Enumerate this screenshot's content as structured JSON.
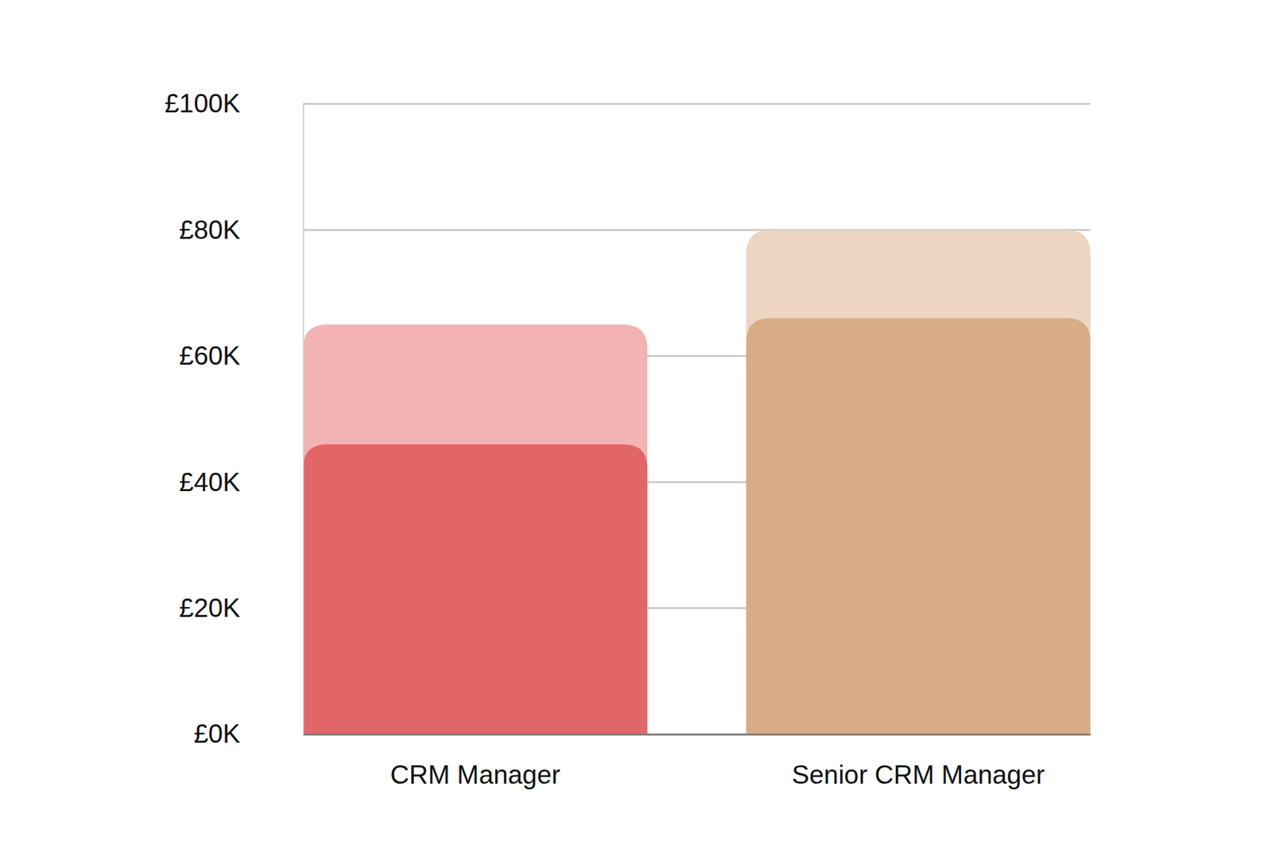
{
  "chart_data": {
    "type": "bar",
    "categories": [
      "CRM Manager",
      "Senior CRM Manager"
    ],
    "series": [
      {
        "colors": [
          "#f2b3b3",
          "#ecd5c2"
        ],
        "values": [
          65000,
          80000
        ]
      },
      {
        "colors": [
          "#e26567",
          "#d8ac85"
        ],
        "values": [
          46000,
          66000
        ]
      }
    ],
    "stacked": false,
    "ylim": [
      0,
      100000
    ],
    "yticks": [
      {
        "value": 0,
        "label": "£0K"
      },
      {
        "value": 20000,
        "label": "£20K"
      },
      {
        "value": 40000,
        "label": "£40K"
      },
      {
        "value": 60000,
        "label": "£60K"
      },
      {
        "value": 80000,
        "label": "£80K"
      },
      {
        "value": 100000,
        "label": "£100K"
      }
    ],
    "grid": true
  }
}
